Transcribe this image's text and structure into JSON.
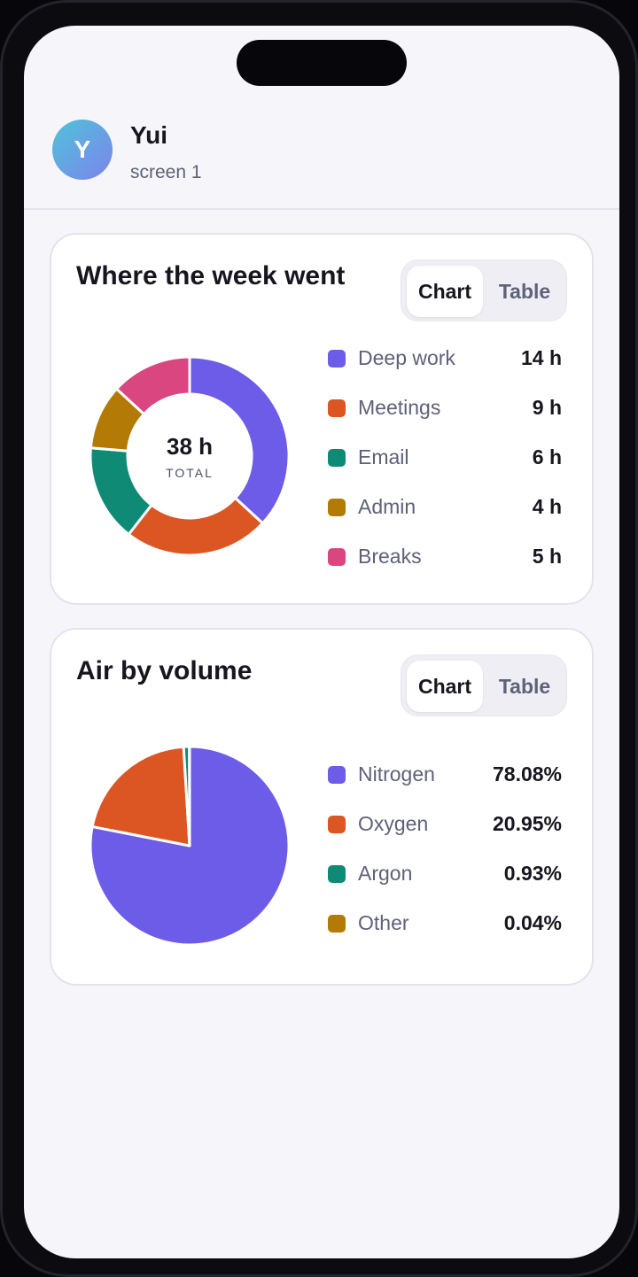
{
  "user": {
    "initial": "Y",
    "name": "Yui",
    "subtitle": "screen 1"
  },
  "toggle": {
    "chart_label": "Chart",
    "table_label": "Table"
  },
  "cards": [
    {
      "title": "Where the week went",
      "center_total": "38 h",
      "center_label": "TOTAL",
      "legend": [
        {
          "label": "Deep work",
          "value": "14 h",
          "color": "#6c5ce7"
        },
        {
          "label": "Meetings",
          "value": "9 h",
          "color": "#dc5623"
        },
        {
          "label": "Email",
          "value": "6 h",
          "color": "#0f8b75"
        },
        {
          "label": "Admin",
          "value": "4 h",
          "color": "#b37a05"
        },
        {
          "label": "Breaks",
          "value": "5 h",
          "color": "#d94680"
        }
      ]
    },
    {
      "title": "Air by volume",
      "legend": [
        {
          "label": "Nitrogen",
          "value": "78.08%",
          "color": "#6c5ce7"
        },
        {
          "label": "Oxygen",
          "value": "20.95%",
          "color": "#dc5623"
        },
        {
          "label": "Argon",
          "value": "0.93%",
          "color": "#0f8b75"
        },
        {
          "label": "Other",
          "value": "0.04%",
          "color": "#b37a05"
        }
      ]
    }
  ],
  "chart_data": [
    {
      "type": "pie",
      "variant": "donut",
      "title": "Where the week went",
      "categories": [
        "Deep work",
        "Meetings",
        "Email",
        "Admin",
        "Breaks"
      ],
      "values": [
        14,
        9,
        6,
        4,
        5
      ],
      "unit": "h",
      "colors": [
        "#6c5ce7",
        "#dc5623",
        "#0f8b75",
        "#b37a05",
        "#d94680"
      ]
    },
    {
      "type": "pie",
      "title": "Air by volume",
      "categories": [
        "Nitrogen",
        "Oxygen",
        "Argon",
        "Other"
      ],
      "values": [
        78.08,
        20.95,
        0.93,
        0.04
      ],
      "unit": "%",
      "colors": [
        "#6c5ce7",
        "#dc5623",
        "#0f8b75",
        "#b37a05"
      ]
    }
  ]
}
